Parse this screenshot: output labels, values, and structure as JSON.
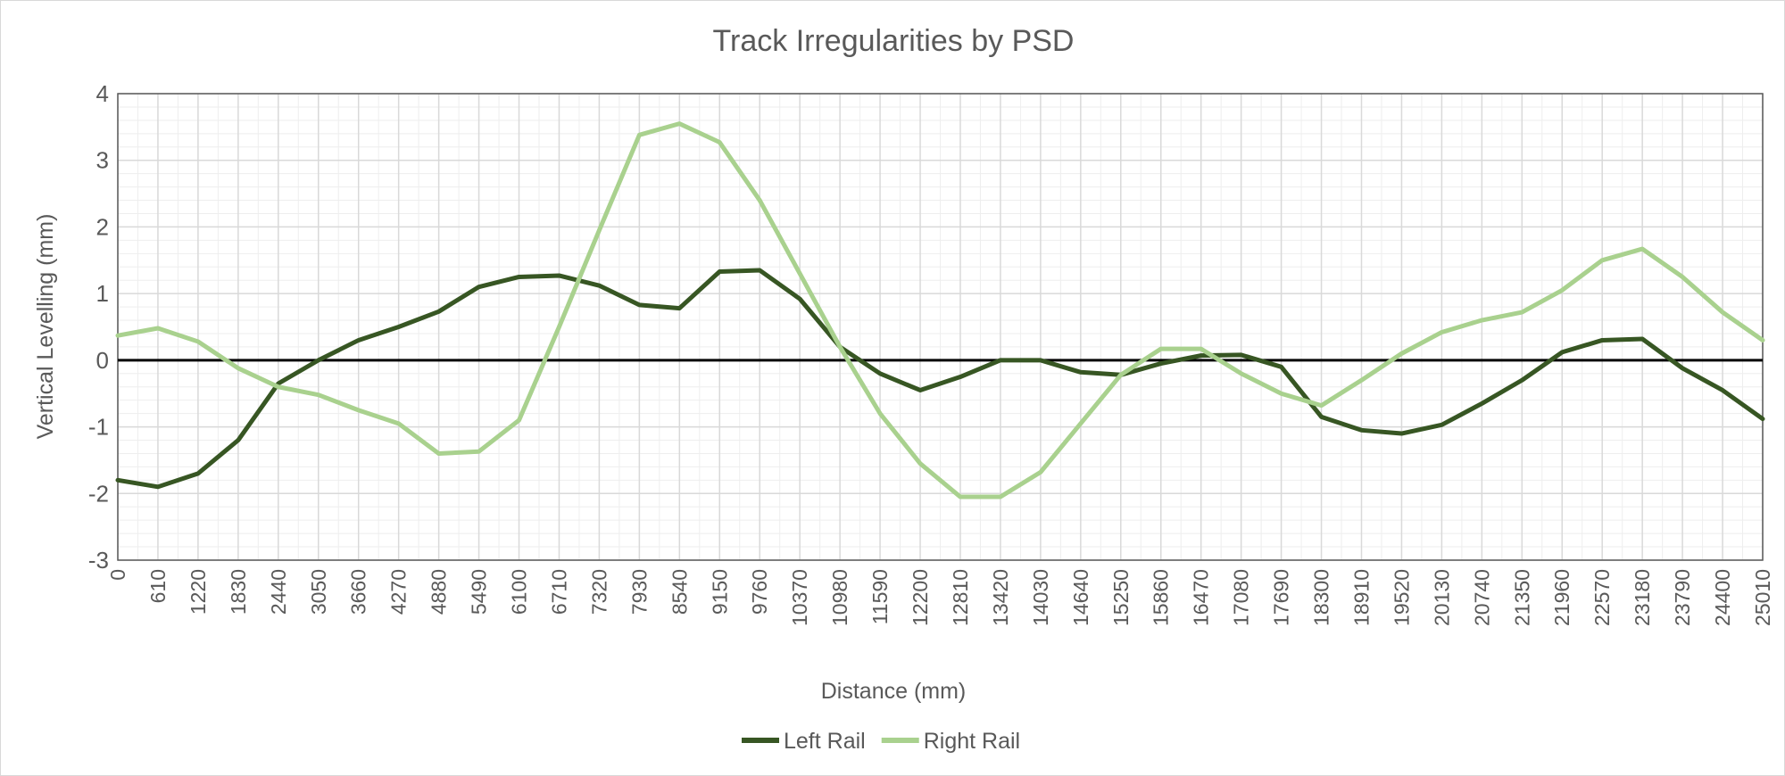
{
  "chart_data": {
    "type": "line",
    "title": "Track Irregularities by PSD",
    "xlabel": "Distance (mm)",
    "ylabel": "Vertical Levelling (mm)",
    "ylim": [
      -3,
      4
    ],
    "yticks": [
      "4",
      "3",
      "2",
      "1",
      "0",
      "-1",
      "-2",
      "-3"
    ],
    "grid": true,
    "legend_position": "bottom",
    "categories": [
      "0",
      "610",
      "1220",
      "1830",
      "2440",
      "3050",
      "3660",
      "4270",
      "4880",
      "5490",
      "6100",
      "6710",
      "7320",
      "7930",
      "8540",
      "9150",
      "9760",
      "10370",
      "10980",
      "11590",
      "12200",
      "12810",
      "13420",
      "14030",
      "14640",
      "15250",
      "15860",
      "16470",
      "17080",
      "17690",
      "18300",
      "18910",
      "19520",
      "20130",
      "20740",
      "21350",
      "21960",
      "22570",
      "23180",
      "23790",
      "24400",
      "25010"
    ],
    "series": [
      {
        "name": "Left Rail",
        "color": "#375623",
        "values": [
          -1.8,
          -1.9,
          -1.7,
          -1.2,
          -0.35,
          0.0,
          0.3,
          0.5,
          0.73,
          1.1,
          1.25,
          1.27,
          1.12,
          0.83,
          0.78,
          1.33,
          1.35,
          0.92,
          0.2,
          -0.2,
          -0.45,
          -0.25,
          0.0,
          0.0,
          -0.18,
          -0.22,
          -0.05,
          0.07,
          0.08,
          -0.1,
          -0.85,
          -1.05,
          -1.1,
          -0.97,
          -0.65,
          -0.3,
          0.12,
          0.3,
          0.32,
          -0.12,
          -0.45,
          -0.88
        ]
      },
      {
        "name": "Right Rail",
        "color": "#a9d18e",
        "values": [
          0.37,
          0.48,
          0.28,
          -0.12,
          -0.4,
          -0.52,
          -0.75,
          -0.95,
          -1.4,
          -1.37,
          -0.9,
          0.5,
          1.95,
          3.38,
          3.55,
          3.27,
          2.4,
          1.3,
          0.2,
          -0.8,
          -1.55,
          -2.05,
          -2.05,
          -1.68,
          -0.95,
          -0.22,
          0.17,
          0.17,
          -0.2,
          -0.5,
          -0.68,
          -0.3,
          0.1,
          0.42,
          0.6,
          0.72,
          1.05,
          1.5,
          1.67,
          1.25,
          0.72,
          0.3
        ]
      }
    ]
  }
}
